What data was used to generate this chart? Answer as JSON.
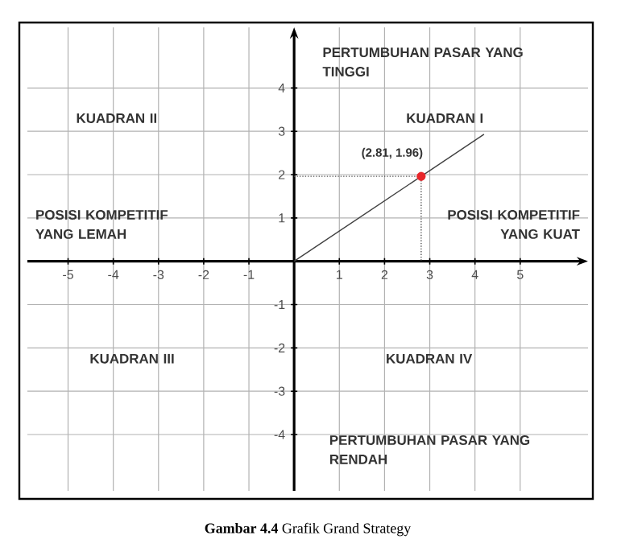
{
  "chart_data": {
    "type": "scatter",
    "title": "**Gambar 4.4** Grafik Grand Strategy",
    "xlim": [
      -5.9,
      6.5
    ],
    "ylim": [
      -5.3,
      5.4
    ],
    "xticks": [
      -5,
      -4,
      -3,
      -2,
      -1,
      1,
      2,
      3,
      4,
      5
    ],
    "yticks": [
      -4,
      -3,
      -2,
      -1,
      1,
      2,
      3,
      4
    ],
    "grid": true,
    "marker": "circle",
    "series": [
      {
        "type": "line",
        "color": "#555555",
        "line_style": "dotted",
        "marker": "none",
        "x": [
          0,
          2.81,
          2.81
        ],
        "values": [
          1.96,
          1.96,
          0
        ]
      },
      {
        "type": "line",
        "color": "#404040",
        "line_style": "solid",
        "marker": "none",
        "x": [
          0,
          4.2
        ],
        "values": [
          0,
          2.93
        ]
      },
      {
        "color": "#e8262a",
        "x": [
          2.81
        ],
        "values": [
          1.96
        ]
      }
    ],
    "annotations": [
      {
        "text": "(2.81, 1.96)",
        "x": 2.81,
        "y": 1.96
      },
      "PERTUMBUHAN PASAR YANG TINGGI",
      "KUADRAN II",
      "KUADRAN I",
      "POSISI KOMPETITIF YANG LEMAH",
      "POSISI KOMPETITIF YANG KUAT",
      "KUADRAN III",
      "KUADRAN IV",
      "PERTUMBUHAN PASAR YANG RENDAH"
    ]
  }
}
